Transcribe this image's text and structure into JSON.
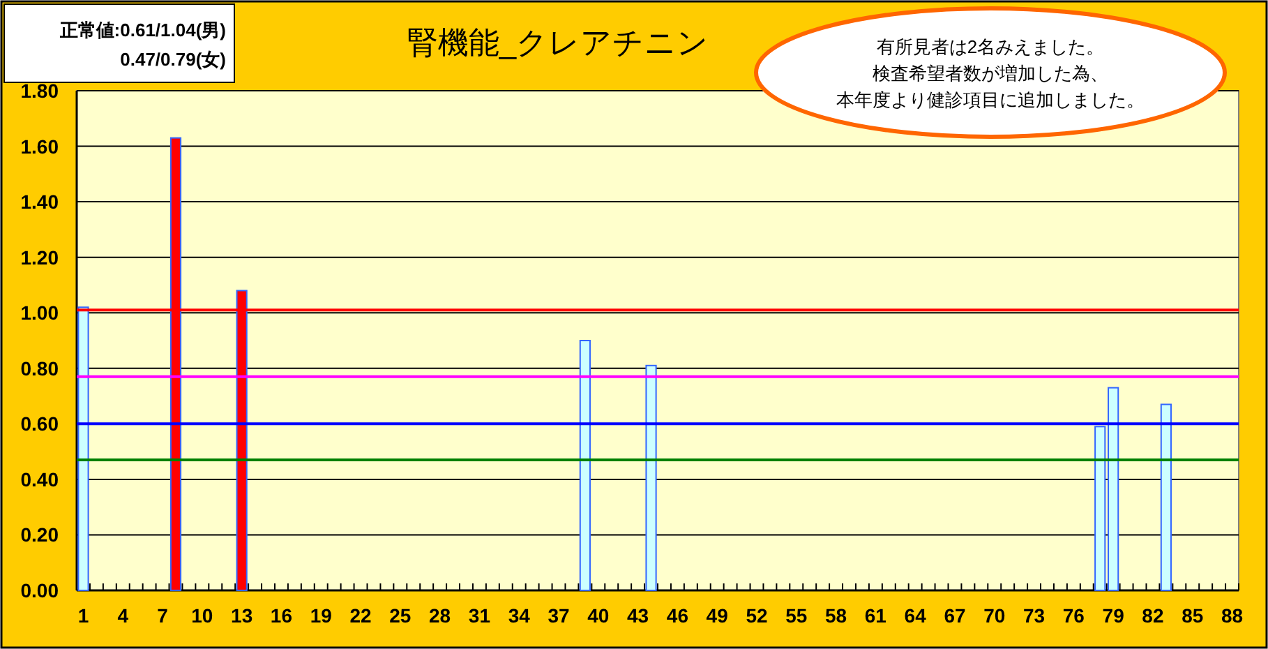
{
  "chart_data": {
    "type": "bar",
    "title": "腎機能_クレアチニン",
    "categories": [
      "1",
      null,
      null,
      "4",
      null,
      null,
      "7",
      null,
      null,
      "10",
      null,
      null,
      "13",
      null,
      null,
      "16",
      null,
      null,
      "19",
      null,
      null,
      "22",
      null,
      null,
      "25",
      null,
      null,
      "28",
      null,
      null,
      "31",
      null,
      null,
      "34",
      null,
      null,
      "37",
      null,
      null,
      "40",
      null,
      null,
      "43",
      null,
      null,
      "46",
      null,
      null,
      "49",
      null,
      null,
      "52",
      null,
      null,
      "55",
      null,
      null,
      "58",
      null,
      null,
      "61",
      null,
      null,
      "64",
      null,
      null,
      "67",
      null,
      null,
      "70",
      null,
      null,
      "73",
      null,
      null,
      "76",
      null,
      null,
      "79",
      null,
      null,
      "82",
      null,
      null,
      "85",
      null,
      null,
      "88"
    ],
    "series": [
      {
        "color": "#ccffff",
        "values": [
          1.02,
          null,
          null,
          null,
          null,
          null,
          null,
          null,
          null,
          null,
          null,
          null,
          null,
          null,
          null,
          null,
          null,
          null,
          null,
          null,
          null,
          null,
          null,
          null,
          null,
          null,
          null,
          null,
          null,
          null,
          null,
          null,
          null,
          null,
          null,
          null,
          null,
          null,
          0.9,
          null,
          null,
          null,
          null,
          0.81,
          null,
          null,
          null,
          null,
          null,
          null,
          null,
          null,
          null,
          null,
          null,
          null,
          null,
          null,
          null,
          null,
          null,
          null,
          null,
          null,
          null,
          null,
          null,
          null,
          null,
          null,
          null,
          null,
          null,
          null,
          null,
          null,
          null,
          0.59,
          0.73,
          null,
          null,
          null,
          0.67,
          null,
          null,
          null,
          null,
          null
        ]
      },
      {
        "color": "#ff0000",
        "values": [
          null,
          null,
          null,
          null,
          null,
          null,
          null,
          1.63,
          null,
          null,
          null,
          null,
          1.08,
          null,
          null,
          null,
          null,
          null,
          null,
          null,
          null,
          null,
          null,
          null,
          null,
          null,
          null,
          null,
          null,
          null,
          null,
          null,
          null,
          null,
          null,
          null,
          null,
          null,
          null,
          null,
          null,
          null,
          null,
          null,
          null,
          null,
          null,
          null,
          null,
          null,
          null,
          null,
          null,
          null,
          null,
          null,
          null,
          null,
          null,
          null,
          null,
          null,
          null,
          null,
          null,
          null,
          null,
          null,
          null,
          null,
          null,
          null,
          null,
          null,
          null,
          null,
          null,
          null,
          null,
          null,
          null,
          null,
          null,
          null,
          null,
          null,
          null,
          null
        ]
      }
    ],
    "ylim": [
      0,
      1.8
    ],
    "yticks": [
      {
        "value": 0,
        "label": "0.00"
      },
      {
        "value": 0.2,
        "label": "0.20"
      },
      {
        "value": 0.4,
        "label": "0.40"
      },
      {
        "value": 0.6,
        "label": "0.60"
      },
      {
        "value": 0.8,
        "label": "0.80"
      },
      {
        "value": 1,
        "label": "1.00"
      },
      {
        "value": 1.2,
        "label": "1.20"
      },
      {
        "value": 1.4,
        "label": "1.40"
      },
      {
        "value": 1.6,
        "label": "1.60"
      },
      {
        "value": 1.8,
        "label": "1.80"
      }
    ],
    "grid": "y",
    "ref_lines": [
      {
        "axis": "y",
        "value": 1.01,
        "color": "#ff0000"
      },
      {
        "axis": "y",
        "value": 0.77,
        "color": "#ff00ff"
      },
      {
        "axis": "y",
        "value": 0.6,
        "color": "#0000ff"
      },
      {
        "axis": "y",
        "value": 0.47,
        "color": "#008000"
      }
    ],
    "annotations": [
      "正常値:0.61/1.04(男)",
      "0.47/0.79(女)",
      "有所見者は2名みえました。",
      "検査希望者数が増加した為、",
      "本年度より健診項目に追加しました。"
    ]
  }
}
